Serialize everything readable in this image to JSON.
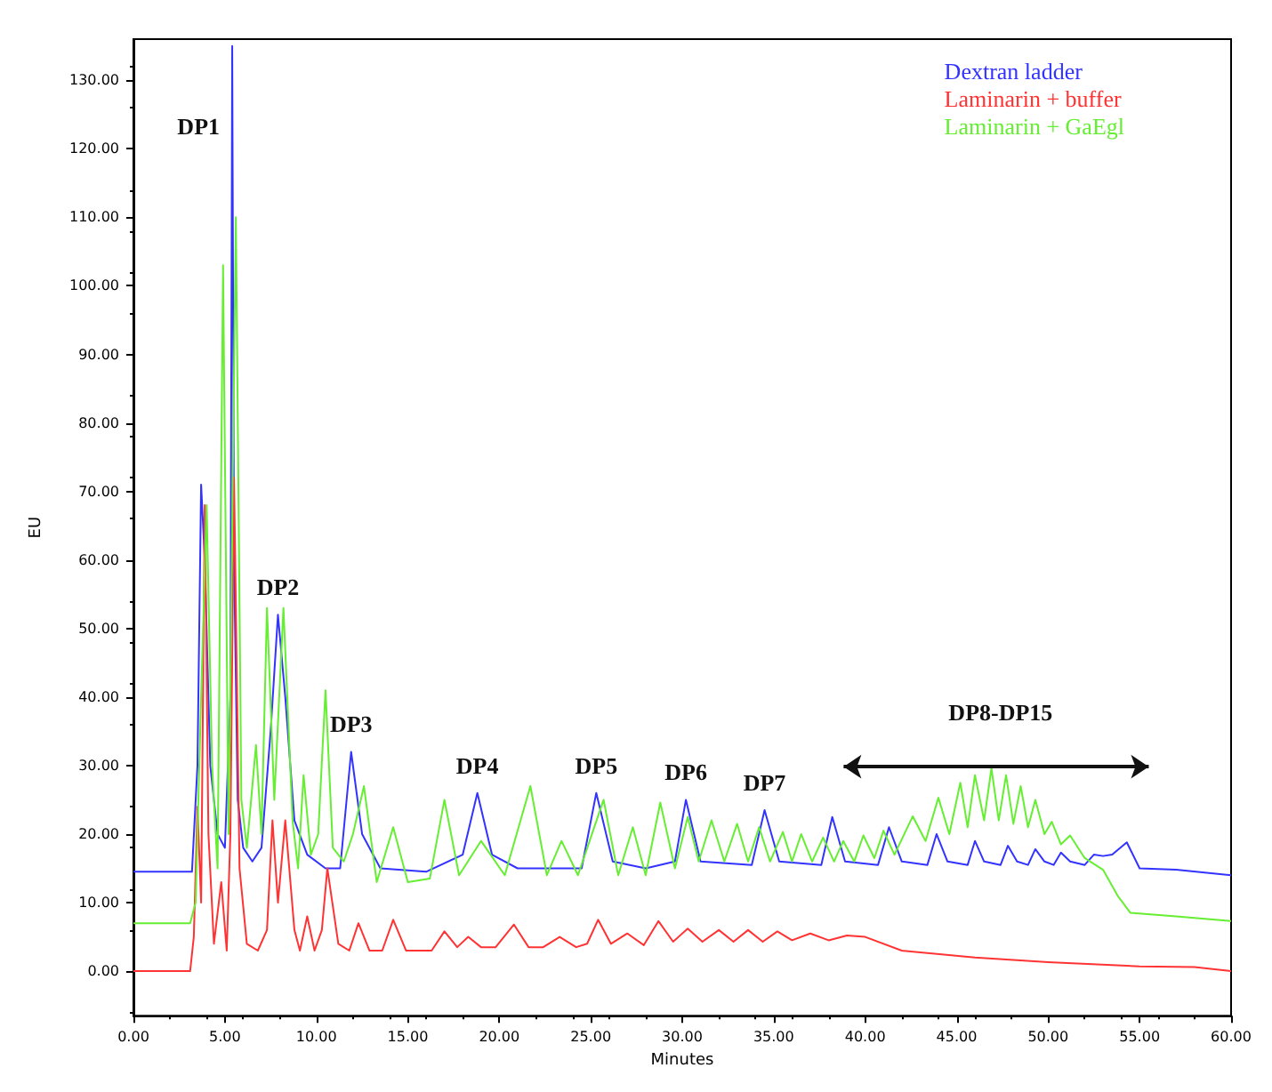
{
  "chart_data": {
    "type": "line",
    "xlabel": "Minutes",
    "ylabel": "EU",
    "xlim": [
      0,
      60
    ],
    "ylim": [
      -6.5,
      136
    ],
    "xticks": [
      {
        "value": 0,
        "label": "0.00"
      },
      {
        "value": 5,
        "label": "5.00"
      },
      {
        "value": 10,
        "label": "10.00"
      },
      {
        "value": 15,
        "label": "15.00"
      },
      {
        "value": 20,
        "label": "20.00"
      },
      {
        "value": 25,
        "label": "25.00"
      },
      {
        "value": 30,
        "label": "30.00"
      },
      {
        "value": 35,
        "label": "35.00"
      },
      {
        "value": 40,
        "label": "40.00"
      },
      {
        "value": 45,
        "label": "45.00"
      },
      {
        "value": 50,
        "label": "50.00"
      },
      {
        "value": 55,
        "label": "55.00"
      },
      {
        "value": 60,
        "label": "60.00"
      }
    ],
    "yticks": [
      {
        "value": 0,
        "label": "0.00"
      },
      {
        "value": 10,
        "label": "10.00"
      },
      {
        "value": 20,
        "label": "20.00"
      },
      {
        "value": 30,
        "label": "30.00"
      },
      {
        "value": 40,
        "label": "40.00"
      },
      {
        "value": 50,
        "label": "50.00"
      },
      {
        "value": 60,
        "label": "60.00"
      },
      {
        "value": 70,
        "label": "70.00"
      },
      {
        "value": 80,
        "label": "80.00"
      },
      {
        "value": 90,
        "label": "90.00"
      },
      {
        "value": 100,
        "label": "100.00"
      },
      {
        "value": 110,
        "label": "110.00"
      },
      {
        "value": 120,
        "label": "120.00"
      },
      {
        "value": 130,
        "label": "130.00"
      }
    ],
    "grid": false,
    "legend": "top right",
    "marker": "none",
    "line_style": "solid",
    "annotations": [
      {
        "text": "DP1",
        "x": 5.4,
        "y": 135
      },
      {
        "text": "DP2",
        "x": 7.9,
        "y": 52
      },
      {
        "text": "DP3",
        "x": 11.9,
        "y": 32
      },
      {
        "text": "DP4",
        "x": 18.8,
        "y": 26
      },
      {
        "text": "DP5",
        "x": 25.3,
        "y": 26
      },
      {
        "text": "DP6",
        "x": 30.2,
        "y": 25
      },
      {
        "text": "DP7",
        "x": 34.5,
        "y": 23.5
      },
      "DP8-DP15"
    ],
    "series": [
      {
        "name": "Dextran ladder",
        "color": "#3333ff",
        "x": [
          0,
          3.2,
          3.5,
          3.7,
          3.9,
          4.2,
          4.6,
          5.0,
          5.3,
          5.4,
          5.5,
          5.7,
          6.0,
          6.5,
          7.0,
          7.5,
          7.9,
          8.3,
          8.8,
          9.5,
          10.5,
          11.3,
          11.9,
          12.5,
          13.5,
          16,
          18,
          18.8,
          19.6,
          21,
          24.5,
          25.3,
          26.2,
          28,
          29.6,
          30.2,
          31,
          33.8,
          34.5,
          35.3,
          37.6,
          38.2,
          38.9,
          40.7,
          41.3,
          42,
          43.4,
          43.9,
          44.5,
          45.6,
          46,
          46.5,
          47.4,
          47.8,
          48.3,
          48.9,
          49.3,
          49.8,
          50.3,
          50.7,
          51.2,
          52,
          52.5,
          53,
          53.5,
          54.3,
          55,
          57,
          60
        ],
        "values": [
          14.5,
          14.5,
          30,
          71,
          60,
          30,
          20,
          18,
          40,
          135,
          60,
          25,
          18,
          16,
          18,
          35,
          52,
          40,
          22,
          17,
          15,
          15,
          32,
          20,
          15,
          14.5,
          17,
          26,
          17,
          15,
          15,
          26,
          16,
          15,
          16,
          25,
          16,
          15.5,
          23.5,
          16,
          15.5,
          22.5,
          16,
          15.5,
          21,
          16,
          15.5,
          20,
          16,
          15.5,
          19,
          16,
          15.5,
          18.3,
          16,
          15.5,
          17.8,
          16,
          15.5,
          17.3,
          16,
          15.5,
          17,
          16.8,
          17,
          18.8,
          15,
          14.8,
          14
        ]
      },
      {
        "name": "Laminarin + buffer",
        "color": "#ff3333",
        "x": [
          0,
          3.1,
          3.3,
          3.5,
          3.7,
          3.9,
          4.1,
          4.4,
          4.8,
          5.1,
          5.3,
          5.5,
          5.8,
          6.2,
          6.8,
          7.3,
          7.6,
          7.9,
          8.3,
          8.8,
          9.1,
          9.5,
          9.9,
          10.3,
          10.6,
          11.2,
          11.8,
          12.3,
          12.9,
          13.6,
          14.2,
          14.9,
          16.3,
          17,
          17.7,
          18.3,
          19,
          19.8,
          20.8,
          21.6,
          22.4,
          23.3,
          24.2,
          24.8,
          25.4,
          26.1,
          27,
          27.9,
          28.7,
          29.5,
          30.3,
          31.1,
          32,
          32.8,
          33.6,
          34.4,
          35.2,
          36,
          37,
          38,
          39,
          40,
          42,
          46,
          50,
          55,
          58,
          60
        ],
        "values": [
          0,
          0,
          5,
          24,
          10,
          68,
          20,
          4,
          13,
          3,
          20,
          72,
          15,
          4,
          3,
          6,
          22,
          10,
          22,
          6,
          3,
          8,
          3,
          6,
          15,
          4,
          3,
          7,
          3,
          3,
          7.5,
          3,
          3,
          5.8,
          3.5,
          5,
          3.5,
          3.5,
          6.8,
          3.5,
          3.5,
          5,
          3.5,
          4,
          7.5,
          4,
          5.5,
          3.8,
          7.3,
          4.3,
          6.2,
          4.3,
          6,
          4.3,
          6,
          4.3,
          5.8,
          4.5,
          5.5,
          4.5,
          5.2,
          5,
          3,
          2,
          1.3,
          0.7,
          0.6,
          0
        ]
      },
      {
        "name": "Laminarin + GaEgl",
        "color": "#66ee33",
        "x": [
          0,
          3.1,
          3.4,
          3.7,
          4.0,
          4.3,
          4.6,
          4.9,
          5.2,
          5.6,
          5.9,
          6.2,
          6.7,
          7.0,
          7.3,
          7.7,
          8.2,
          8.7,
          9.0,
          9.3,
          9.7,
          10.1,
          10.5,
          10.9,
          11.5,
          12.0,
          12.6,
          13.3,
          14.2,
          15.0,
          16.2,
          17,
          17.8,
          19,
          20.3,
          21.7,
          22.6,
          23.4,
          24.3,
          25.7,
          26.5,
          27.3,
          28,
          28.8,
          29.6,
          30.3,
          30.9,
          31.6,
          32.3,
          33,
          33.6,
          34.2,
          34.8,
          35.5,
          36,
          36.5,
          37.1,
          37.7,
          38.3,
          38.8,
          39.4,
          39.9,
          40.5,
          41,
          41.6,
          42.6,
          43.3,
          44,
          44.6,
          45.2,
          45.6,
          46,
          46.5,
          46.9,
          47.3,
          47.7,
          48.1,
          48.5,
          48.9,
          49.3,
          49.8,
          50.2,
          50.7,
          51.2,
          52,
          53,
          53.8,
          54.5,
          57,
          60
        ],
        "values": [
          7,
          7,
          10,
          40,
          68,
          30,
          15,
          103,
          20,
          110,
          25,
          18,
          33,
          20,
          53,
          25,
          53,
          22,
          15,
          28.6,
          17,
          20,
          41,
          18,
          16,
          20,
          27,
          13,
          21,
          13,
          13.5,
          25,
          14,
          19,
          14,
          27,
          14,
          19,
          14,
          25,
          14,
          21,
          14,
          24.6,
          15,
          22.5,
          16,
          22,
          16,
          21.5,
          16,
          21,
          16,
          20.3,
          16,
          20,
          16,
          19.5,
          16,
          19,
          16,
          19.8,
          16.5,
          20.5,
          17,
          22.6,
          19,
          25.3,
          20,
          27.5,
          21,
          28.6,
          22,
          29.6,
          22,
          28.6,
          21.5,
          27,
          21,
          25,
          20,
          21.8,
          18.5,
          19.8,
          16.5,
          14.8,
          11,
          8.5,
          8,
          7.3
        ]
      }
    ]
  }
}
